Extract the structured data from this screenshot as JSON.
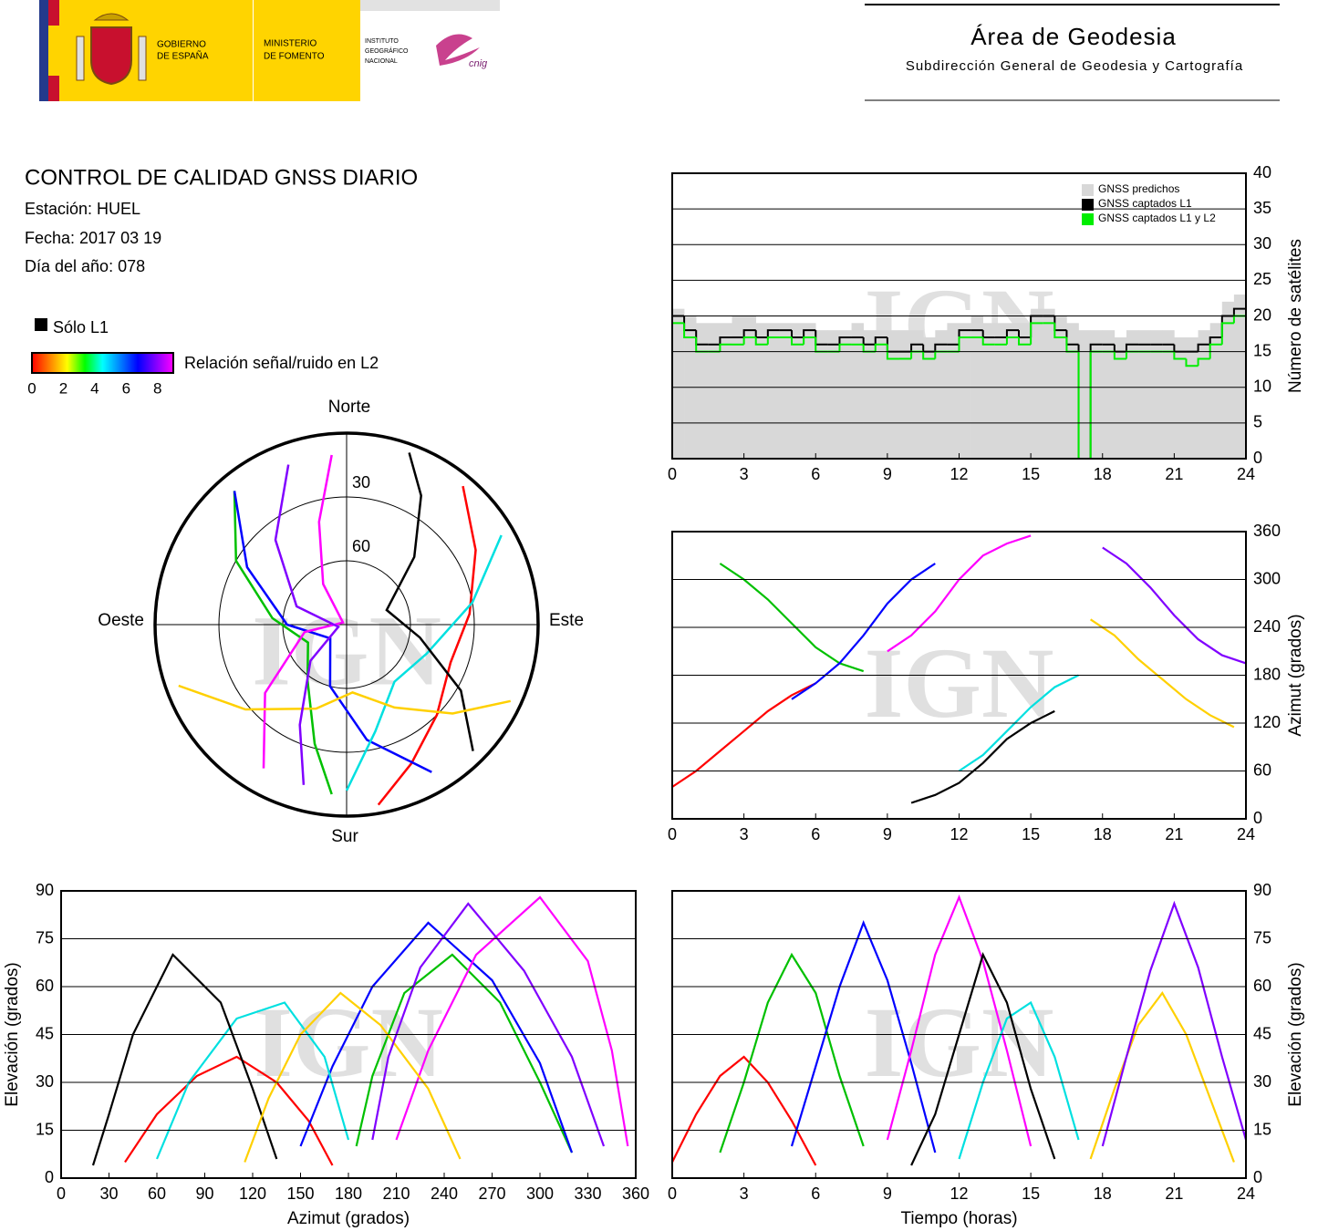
{
  "header": {
    "gobierno": [
      "GOBIERNO",
      "DE ESPAÑA"
    ],
    "ministerio": [
      "MINISTERIO",
      "DE FOMENTO"
    ],
    "instituto": [
      "INSTITUTO",
      "GEOGRÁFICO",
      "NACIONAL"
    ],
    "cnig": "cnig",
    "area": "Área de Geodesia",
    "subdireccion": "Subdirección General de Geodesia y Cartografía"
  },
  "report": {
    "title": "CONTROL DE CALIDAD GNSS DIARIO",
    "station": "Estación: HUEL",
    "date": "Fecha: 2017 03 19",
    "doy": "Día del año: 078",
    "l1_only": {
      "label": "Sólo L1",
      "color": "#000000"
    },
    "colorbar": {
      "label": "Relación señal/ruido en L2",
      "lim": [
        0,
        9
      ],
      "ticks": [
        0,
        2,
        4,
        6,
        8
      ],
      "colors": [
        "#ff0000",
        "#ff8000",
        "#ffff00",
        "#00ff00",
        "#00ffff",
        "#0080ff",
        "#0000ff",
        "#8000ff",
        "#ff00ff"
      ]
    }
  },
  "chart_data": [
    {
      "type": "polar",
      "watermark": "IGN",
      "labels": {
        "north": "Norte",
        "south": "Sur",
        "west": "Oeste",
        "east": "Este"
      },
      "rlim": [
        0,
        90
      ],
      "rticks": [
        30,
        60
      ],
      "series": [
        {
          "color": "#ff0000",
          "x": [
            40,
            60,
            85,
            110,
            135,
            155,
            170
          ],
          "values": [
            5,
            20,
            32,
            38,
            30,
            18,
            4
          ]
        },
        {
          "color": "#00c000",
          "x": [
            320,
            300,
            275,
            245,
            215,
            195,
            185
          ],
          "values": [
            8,
            30,
            55,
            70,
            58,
            32,
            10
          ]
        },
        {
          "color": "#0000ff",
          "x": [
            150,
            170,
            195,
            230,
            270,
            300,
            320
          ],
          "values": [
            10,
            35,
            60,
            80,
            62,
            36,
            8
          ]
        },
        {
          "color": "#ff00ff",
          "x": [
            210,
            230,
            260,
            300,
            330,
            345,
            355
          ],
          "values": [
            12,
            40,
            70,
            88,
            68,
            40,
            10
          ]
        },
        {
          "color": "#00e0e0",
          "x": [
            60,
            80,
            110,
            140,
            165,
            180
          ],
          "values": [
            6,
            30,
            50,
            55,
            38,
            12
          ]
        },
        {
          "color": "#000000",
          "x": [
            20,
            30,
            45,
            70,
            100,
            120,
            135
          ],
          "values": [
            4,
            20,
            45,
            70,
            55,
            28,
            6
          ]
        },
        {
          "color": "#ffd000",
          "x": [
            250,
            230,
            200,
            175,
            150,
            130,
            115
          ],
          "values": [
            6,
            28,
            48,
            58,
            45,
            25,
            5
          ]
        },
        {
          "color": "#8000ff",
          "x": [
            340,
            320,
            290,
            255,
            225,
            205,
            195
          ],
          "values": [
            10,
            38,
            65,
            86,
            66,
            38,
            12
          ]
        }
      ]
    },
    {
      "type": "step",
      "watermark": "IGN",
      "ylabel": "Número de satélites",
      "yaxis_position": "right",
      "xlim": [
        0,
        24
      ],
      "xticks": [
        0,
        3,
        6,
        9,
        12,
        15,
        18,
        21,
        24
      ],
      "ylim": [
        0,
        40
      ],
      "yticks": [
        0,
        5,
        10,
        15,
        20,
        25,
        30,
        35,
        40
      ],
      "grid": true,
      "legend_position": "upper right",
      "x": [
        0,
        0.5,
        1,
        1.5,
        2,
        2.5,
        3,
        3.5,
        4,
        4.5,
        5,
        5.5,
        6,
        6.5,
        7,
        7.5,
        8,
        8.5,
        9,
        9.5,
        10,
        10.5,
        11,
        11.5,
        12,
        12.5,
        13,
        13.5,
        14,
        14.5,
        15,
        15.5,
        16,
        16.5,
        17,
        17.5,
        18,
        18.5,
        19,
        19.5,
        20,
        20.5,
        21,
        21.5,
        22,
        22.5,
        23,
        23.5
      ],
      "series": [
        {
          "name": "GNSS predichos",
          "color": "#d8d8d8",
          "style": "area",
          "values": [
            21,
            20,
            19,
            19,
            19,
            20,
            20,
            19,
            19,
            19,
            19,
            19,
            18,
            18,
            18,
            19,
            18,
            18,
            18,
            18,
            18,
            17,
            18,
            19,
            19,
            20,
            19,
            19,
            19,
            19,
            21,
            21,
            20,
            19,
            18,
            18,
            18,
            17,
            18,
            18,
            18,
            18,
            17,
            17,
            18,
            19,
            22,
            23
          ]
        },
        {
          "name": "GNSS captados L1",
          "color": "#000000",
          "style": "step",
          "values": [
            20,
            18,
            16,
            16,
            17,
            17,
            18,
            17,
            18,
            18,
            17,
            18,
            16,
            16,
            17,
            17,
            16,
            17,
            15,
            15,
            16,
            15,
            16,
            16,
            18,
            18,
            17,
            17,
            18,
            17,
            20,
            20,
            18,
            16,
            0,
            16,
            16,
            15,
            16,
            16,
            16,
            16,
            15,
            15,
            16,
            17,
            20,
            21
          ]
        },
        {
          "name": "GNSS captados L1 y L2",
          "color": "#00ee00",
          "style": "step",
          "values": [
            19,
            17,
            15,
            15,
            16,
            16,
            17,
            16,
            17,
            17,
            16,
            17,
            15,
            15,
            16,
            16,
            15,
            16,
            14,
            14,
            15,
            14,
            15,
            15,
            17,
            17,
            16,
            16,
            17,
            16,
            19,
            19,
            17,
            15,
            0,
            15,
            15,
            14,
            15,
            15,
            15,
            15,
            14,
            13,
            14,
            16,
            19,
            20
          ]
        }
      ]
    },
    {
      "type": "line",
      "watermark": "IGN",
      "ylabel": "Azimut (grados)",
      "yaxis_position": "right",
      "xlim": [
        0,
        24
      ],
      "xticks": [
        0,
        3,
        6,
        9,
        12,
        15,
        18,
        21,
        24
      ],
      "ylim": [
        0,
        360
      ],
      "yticks": [
        0,
        60,
        120,
        180,
        240,
        300,
        360
      ],
      "grid": true,
      "series": [
        {
          "color": "#ff0000",
          "x": [
            0,
            1,
            2,
            3,
            4,
            5,
            6
          ],
          "values": [
            40,
            60,
            85,
            110,
            135,
            155,
            170
          ]
        },
        {
          "color": "#00c000",
          "x": [
            2,
            3,
            4,
            5,
            6,
            7,
            8
          ],
          "values": [
            320,
            300,
            275,
            245,
            215,
            195,
            185
          ]
        },
        {
          "color": "#0000ff",
          "x": [
            5,
            6,
            7,
            8,
            9,
            10,
            11
          ],
          "values": [
            150,
            170,
            195,
            230,
            270,
            300,
            320
          ]
        },
        {
          "color": "#ff00ff",
          "x": [
            9,
            10,
            11,
            12,
            13,
            14,
            15
          ],
          "values": [
            210,
            230,
            260,
            300,
            330,
            345,
            355
          ]
        },
        {
          "color": "#00e0e0",
          "x": [
            12,
            13,
            14,
            15,
            16,
            17
          ],
          "values": [
            60,
            80,
            110,
            140,
            165,
            180
          ]
        },
        {
          "color": "#000000",
          "x": [
            10,
            11,
            12,
            13,
            14,
            15,
            16
          ],
          "values": [
            20,
            30,
            45,
            70,
            100,
            120,
            135
          ]
        },
        {
          "color": "#ffd000",
          "x": [
            17.5,
            18.5,
            19.5,
            20.5,
            21.5,
            22.5,
            23.5
          ],
          "values": [
            250,
            230,
            200,
            175,
            150,
            130,
            115
          ]
        },
        {
          "color": "#8000ff",
          "x": [
            18,
            19,
            20,
            21,
            22,
            23,
            24
          ],
          "values": [
            340,
            320,
            290,
            255,
            225,
            205,
            195
          ]
        }
      ]
    },
    {
      "type": "line",
      "watermark": "IGN",
      "xlabel": "Azimut (grados)",
      "ylabel": "Elevación (grados)",
      "yaxis_position": "left",
      "xlim": [
        0,
        360
      ],
      "xticks": [
        0,
        30,
        60,
        90,
        120,
        150,
        180,
        210,
        240,
        270,
        300,
        330,
        360
      ],
      "ylim": [
        0,
        90
      ],
      "yticks": [
        0,
        15,
        30,
        45,
        60,
        75,
        90
      ],
      "grid": true,
      "series": [
        {
          "color": "#ff0000",
          "x": [
            40,
            60,
            85,
            110,
            135,
            155,
            170
          ],
          "values": [
            5,
            20,
            32,
            38,
            30,
            18,
            4
          ]
        },
        {
          "color": "#00c000",
          "x": [
            320,
            300,
            275,
            245,
            215,
            195,
            185
          ],
          "values": [
            8,
            30,
            55,
            70,
            58,
            32,
            10
          ]
        },
        {
          "color": "#0000ff",
          "x": [
            150,
            170,
            195,
            230,
            270,
            300,
            320
          ],
          "values": [
            10,
            35,
            60,
            80,
            62,
            36,
            8
          ]
        },
        {
          "color": "#ff00ff",
          "x": [
            210,
            230,
            260,
            300,
            330,
            345,
            355
          ],
          "values": [
            12,
            40,
            70,
            88,
            68,
            40,
            10
          ]
        },
        {
          "color": "#00e0e0",
          "x": [
            60,
            80,
            110,
            140,
            165,
            180
          ],
          "values": [
            6,
            30,
            50,
            55,
            38,
            12
          ]
        },
        {
          "color": "#000000",
          "x": [
            20,
            30,
            45,
            70,
            100,
            120,
            135
          ],
          "values": [
            4,
            20,
            45,
            70,
            55,
            28,
            6
          ]
        },
        {
          "color": "#ffd000",
          "x": [
            250,
            230,
            200,
            175,
            150,
            130,
            115
          ],
          "values": [
            6,
            28,
            48,
            58,
            45,
            25,
            5
          ]
        },
        {
          "color": "#8000ff",
          "x": [
            340,
            320,
            290,
            255,
            225,
            205,
            195
          ],
          "values": [
            10,
            38,
            65,
            86,
            66,
            38,
            12
          ]
        }
      ]
    },
    {
      "type": "line",
      "watermark": "IGN",
      "xlabel": "Tiempo (horas)",
      "ylabel": "Elevación (grados)",
      "yaxis_position": "right",
      "xlim": [
        0,
        24
      ],
      "xticks": [
        0,
        3,
        6,
        9,
        12,
        15,
        18,
        21,
        24
      ],
      "ylim": [
        0,
        90
      ],
      "yticks": [
        0,
        15,
        30,
        45,
        60,
        75,
        90
      ],
      "grid": true,
      "series": [
        {
          "color": "#ff0000",
          "x": [
            0,
            1,
            2,
            3,
            4,
            5,
            6
          ],
          "values": [
            5,
            20,
            32,
            38,
            30,
            18,
            4
          ]
        },
        {
          "color": "#00c000",
          "x": [
            2,
            3,
            4,
            5,
            6,
            7,
            8
          ],
          "values": [
            8,
            30,
            55,
            70,
            58,
            32,
            10
          ]
        },
        {
          "color": "#0000ff",
          "x": [
            5,
            6,
            7,
            8,
            9,
            10,
            11
          ],
          "values": [
            10,
            35,
            60,
            80,
            62,
            36,
            8
          ]
        },
        {
          "color": "#ff00ff",
          "x": [
            9,
            10,
            11,
            12,
            13,
            14,
            15
          ],
          "values": [
            12,
            40,
            70,
            88,
            68,
            40,
            10
          ]
        },
        {
          "color": "#00e0e0",
          "x": [
            12,
            13,
            14,
            15,
            16,
            17
          ],
          "values": [
            6,
            30,
            50,
            55,
            38,
            12
          ]
        },
        {
          "color": "#000000",
          "x": [
            10,
            11,
            12,
            13,
            14,
            15,
            16
          ],
          "values": [
            4,
            20,
            45,
            70,
            55,
            28,
            6
          ]
        },
        {
          "color": "#ffd000",
          "x": [
            17.5,
            18.5,
            19.5,
            20.5,
            21.5,
            22.5,
            23.5
          ],
          "values": [
            6,
            28,
            48,
            58,
            45,
            25,
            5
          ]
        },
        {
          "color": "#8000ff",
          "x": [
            18,
            19,
            20,
            21,
            22,
            23,
            24
          ],
          "values": [
            10,
            38,
            65,
            86,
            66,
            38,
            12
          ]
        }
      ]
    }
  ]
}
